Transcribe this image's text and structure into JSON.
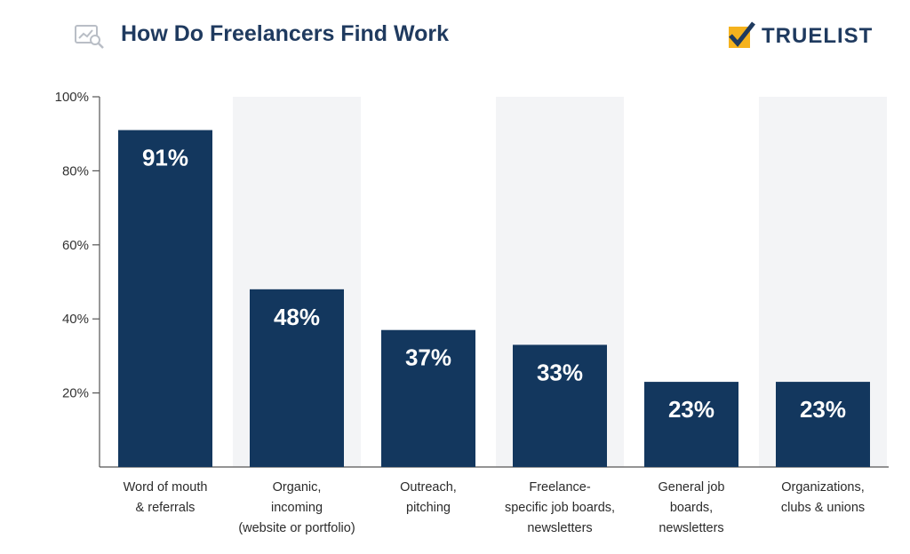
{
  "header": {
    "title": "How Do Freelancers Find Work",
    "brand": "TRUELIST"
  },
  "colors": {
    "bar": "#13375e",
    "band": "#f3f4f6",
    "axis": "#555555",
    "title": "#1f3a5f",
    "logo_accent": "#f5b21d"
  },
  "icons": {
    "title_icon": "search-chart-icon",
    "logo_icon": "check-mark-icon"
  },
  "chart_data": {
    "type": "bar",
    "title": "How Do Freelancers Find Work",
    "xlabel": "",
    "ylabel": "",
    "ylim": [
      0,
      100
    ],
    "yticks": [
      20,
      40,
      60,
      80,
      100
    ],
    "ytick_labels": [
      "20%",
      "40%",
      "60%",
      "80%",
      "100%"
    ],
    "categories": [
      "Word of mouth\n& referrals",
      "Organic,\nincoming\n(website or portfolio)",
      "Outreach,\npitching",
      "Freelance-\nspecific job boards,\nnewsletters",
      "General job\nboards,\nnewsletters",
      "Organizations,\nclubs & unions"
    ],
    "values": [
      91,
      48,
      37,
      33,
      23,
      23
    ],
    "data_labels": [
      "91%",
      "48%",
      "37%",
      "33%",
      "23%",
      "23%"
    ],
    "shaded_columns": [
      1,
      3,
      5
    ],
    "grid": false,
    "legend": "none"
  }
}
